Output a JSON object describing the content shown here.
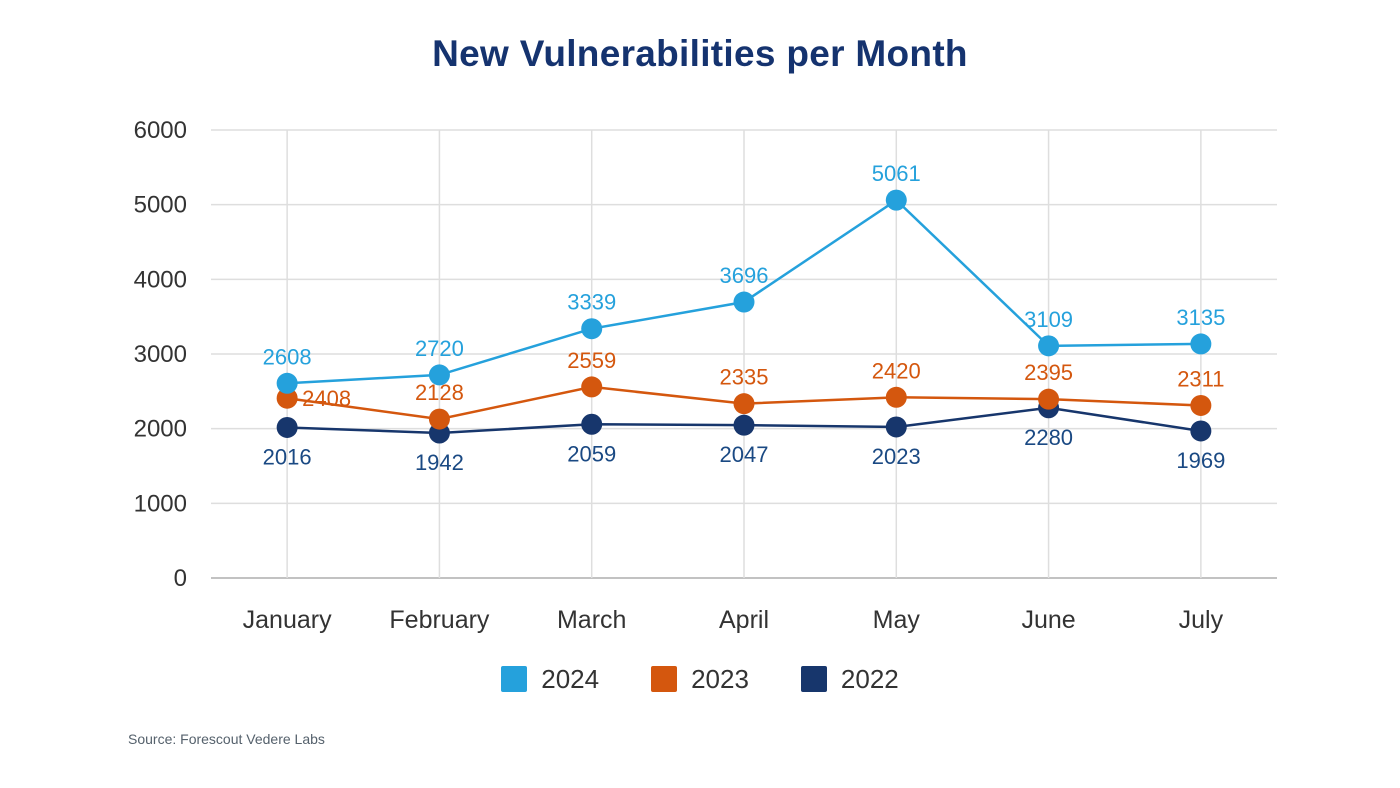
{
  "chart_data": {
    "type": "line",
    "title": "New Vulnerabilities per Month",
    "categories": [
      "January",
      "February",
      "March",
      "April",
      "May",
      "June",
      "July"
    ],
    "xlabel": "",
    "ylabel": "",
    "ylim": [
      0,
      6000
    ],
    "ytick_step": 1000,
    "grid": true,
    "legend_position": "bottom",
    "series": [
      {
        "name": "2024",
        "color": "#25A1DC",
        "label_color": "#25A1DC",
        "values": [
          2608,
          2720,
          3339,
          3696,
          5061,
          3109,
          3135
        ],
        "label_pos": "above"
      },
      {
        "name": "2023",
        "color": "#D4570E",
        "label_color": "#D4570E",
        "values": [
          2408,
          2128,
          2559,
          2335,
          2420,
          2395,
          2311
        ],
        "label_pos": "above",
        "label_overrides": {
          "0": "right"
        }
      },
      {
        "name": "2022",
        "color": "#17366C",
        "label_color": "#1A4983",
        "values": [
          2016,
          1942,
          2059,
          2047,
          2023,
          2280,
          1969
        ],
        "label_pos": "below"
      }
    ],
    "source": "Source: Forescout Vedere Labs",
    "colors": {
      "grid": "#dedede",
      "axis": "#c2c2c2",
      "tick_text": "#333333",
      "title": "#15336F"
    }
  }
}
